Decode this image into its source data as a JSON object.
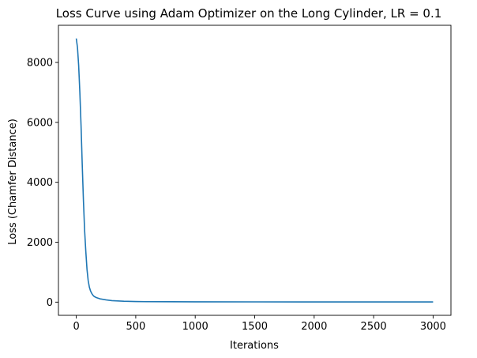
{
  "chart_data": {
    "type": "line",
    "title": "Loss Curve using Adam Optimizer on the Long Cylinder, LR = 0.1",
    "xlabel": "Iterations",
    "ylabel": "Loss (Chamfer Distance)",
    "xlim": [
      -150,
      3150
    ],
    "ylim": [
      -440,
      9240
    ],
    "xticks": [
      0,
      500,
      1000,
      1500,
      2000,
      2500,
      3000
    ],
    "yticks": [
      0,
      2000,
      4000,
      6000,
      8000
    ],
    "xtick_labels": [
      "0",
      "500",
      "1000",
      "1500",
      "2000",
      "2500",
      "3000"
    ],
    "ytick_labels": [
      "0",
      "2000",
      "4000",
      "6000",
      "8000"
    ],
    "grid": false,
    "series": [
      {
        "color": "#1f77b4",
        "x": [
          0,
          10,
          20,
          30,
          40,
          50,
          60,
          70,
          80,
          90,
          100,
          110,
          120,
          130,
          140,
          150,
          170,
          200,
          250,
          300,
          400,
          500,
          600,
          800,
          1000,
          1500,
          2000,
          2500,
          3000
        ],
        "y": [
          8800,
          8500,
          7900,
          7000,
          5900,
          4600,
          3400,
          2400,
          1700,
          1100,
          720,
          500,
          370,
          290,
          230,
          190,
          150,
          110,
          75,
          50,
          30,
          20,
          15,
          12,
          10,
          8,
          7,
          7,
          6
        ]
      }
    ]
  }
}
